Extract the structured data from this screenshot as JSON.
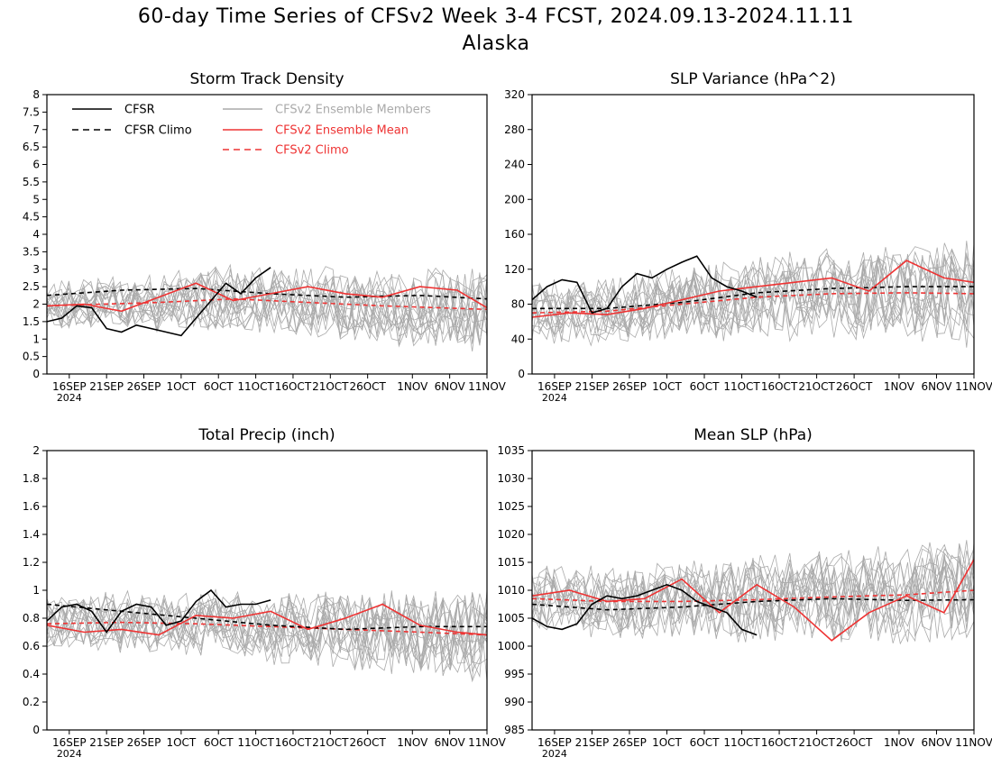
{
  "title": {
    "line1": "60-day Time Series of CFSv2 Week 3-4 FCST, 2024.09.13-2024.11.11",
    "line2": "Alaska"
  },
  "colors": {
    "cfsr": "#000000",
    "ensemble_member": "#aaaaaa",
    "ensemble_mean": "#ee3333",
    "cfsv2_climo": "#ee3333"
  },
  "legend": {
    "placement": "top-left of first panel",
    "entries": [
      {
        "label": "CFSR",
        "style": "solid",
        "color": "#000000"
      },
      {
        "label": "CFSR Climo",
        "style": "dashed",
        "color": "#000000"
      },
      {
        "label": "CFSv2 Ensemble Members",
        "style": "solid",
        "color": "#aaaaaa"
      },
      {
        "label": "CFSv2 Ensemble Mean",
        "style": "solid",
        "color": "#ee3333"
      },
      {
        "label": "CFSv2 Climo",
        "style": "dashed",
        "color": "#ee3333"
      }
    ]
  },
  "x_axis": {
    "start_date": "2024-09-13",
    "end_date": "2024-11-11",
    "ticks": [
      {
        "date": "2024-09-16",
        "label": "16SEP",
        "sublabel": "2024"
      },
      {
        "date": "2024-09-21",
        "label": "21SEP"
      },
      {
        "date": "2024-09-26",
        "label": "26SEP"
      },
      {
        "date": "2024-10-01",
        "label": "1OCT"
      },
      {
        "date": "2024-10-06",
        "label": "6OCT"
      },
      {
        "date": "2024-10-11",
        "label": "11OCT"
      },
      {
        "date": "2024-10-16",
        "label": "16OCT"
      },
      {
        "date": "2024-10-21",
        "label": "21OCT"
      },
      {
        "date": "2024-10-26",
        "label": "26OCT"
      },
      {
        "date": "2024-11-01",
        "label": "1NOV"
      },
      {
        "date": "2024-11-06",
        "label": "6NOV"
      },
      {
        "date": "2024-11-11",
        "label": "11NOV"
      }
    ]
  },
  "chart_data": [
    {
      "type": "line",
      "title": "Storm Track Density",
      "ylim": [
        0,
        8
      ],
      "yticks": [
        "0",
        "0.5",
        "1",
        "1.5",
        "2",
        "2.5",
        "3",
        "3.5",
        "4",
        "4.5",
        "5",
        "5.5",
        "6",
        "6.5",
        "7",
        "7.5",
        "8"
      ],
      "series": [
        {
          "name": "CFSR",
          "style": "solid",
          "color": "#000000",
          "x": [
            "2024-09-13",
            "2024-09-15",
            "2024-09-17",
            "2024-09-19",
            "2024-09-21",
            "2024-09-23",
            "2024-09-25",
            "2024-09-27",
            "2024-09-29",
            "2024-10-01",
            "2024-10-03",
            "2024-10-05",
            "2024-10-07",
            "2024-10-09",
            "2024-10-11",
            "2024-10-13"
          ],
          "y": [
            1.5,
            1.6,
            1.95,
            1.9,
            1.3,
            1.2,
            1.4,
            1.3,
            1.2,
            1.1,
            1.6,
            2.1,
            2.6,
            2.3,
            2.75,
            3.05
          ]
        },
        {
          "name": "CFSR Climo",
          "style": "dashed",
          "color": "#000000",
          "x": [
            "2024-09-13",
            "2024-09-23",
            "2024-10-03",
            "2024-10-13",
            "2024-10-23",
            "2024-11-02",
            "2024-11-11"
          ],
          "y": [
            2.25,
            2.4,
            2.45,
            2.3,
            2.2,
            2.25,
            2.15
          ]
        },
        {
          "name": "CFSv2 Ensemble Mean",
          "style": "solid",
          "color": "#ee3333",
          "x": [
            "2024-09-13",
            "2024-09-18",
            "2024-09-23",
            "2024-09-28",
            "2024-10-03",
            "2024-10-08",
            "2024-10-13",
            "2024-10-18",
            "2024-10-23",
            "2024-10-28",
            "2024-11-02",
            "2024-11-07",
            "2024-11-11"
          ],
          "y": [
            1.95,
            2.0,
            1.8,
            2.2,
            2.6,
            2.1,
            2.3,
            2.5,
            2.3,
            2.2,
            2.5,
            2.4,
            1.9
          ]
        },
        {
          "name": "CFSv2 Climo",
          "style": "dashed",
          "color": "#ee3333",
          "x": [
            "2024-09-13",
            "2024-09-28",
            "2024-10-08",
            "2024-10-18",
            "2024-10-28",
            "2024-11-11"
          ],
          "y": [
            1.95,
            2.05,
            2.15,
            2.05,
            1.95,
            1.85
          ]
        }
      ],
      "ensemble_members": {
        "count": 16,
        "color": "#aaaaaa",
        "center": 2.3,
        "spread": 1.1
      }
    },
    {
      "type": "line",
      "title": "SLP Variance (hPa^2)",
      "ylim": [
        0,
        320
      ],
      "yticks": [
        "0",
        "40",
        "80",
        "120",
        "160",
        "200",
        "240",
        "280",
        "320"
      ],
      "series": [
        {
          "name": "CFSR",
          "style": "solid",
          "color": "#000000",
          "x": [
            "2024-09-13",
            "2024-09-15",
            "2024-09-17",
            "2024-09-19",
            "2024-09-21",
            "2024-09-23",
            "2024-09-25",
            "2024-09-27",
            "2024-09-29",
            "2024-10-01",
            "2024-10-03",
            "2024-10-05",
            "2024-10-07",
            "2024-10-09",
            "2024-10-11",
            "2024-10-13"
          ],
          "y": [
            85,
            100,
            108,
            105,
            70,
            75,
            100,
            115,
            110,
            120,
            128,
            135,
            110,
            100,
            95,
            88
          ]
        },
        {
          "name": "CFSR Climo",
          "style": "dashed",
          "color": "#000000",
          "x": [
            "2024-09-13",
            "2024-09-23",
            "2024-10-03",
            "2024-10-13",
            "2024-10-23",
            "2024-11-02",
            "2024-11-11"
          ],
          "y": [
            75,
            75,
            82,
            93,
            98,
            100,
            100
          ]
        },
        {
          "name": "CFSv2 Ensemble Mean",
          "style": "solid",
          "color": "#ee3333",
          "x": [
            "2024-09-13",
            "2024-09-18",
            "2024-09-23",
            "2024-09-28",
            "2024-10-03",
            "2024-10-08",
            "2024-10-13",
            "2024-10-18",
            "2024-10-23",
            "2024-10-28",
            "2024-11-02",
            "2024-11-07",
            "2024-11-11"
          ],
          "y": [
            65,
            70,
            68,
            75,
            85,
            95,
            100,
            105,
            110,
            95,
            130,
            110,
            105
          ]
        },
        {
          "name": "CFSv2 Climo",
          "style": "dashed",
          "color": "#ee3333",
          "x": [
            "2024-09-13",
            "2024-09-23",
            "2024-10-03",
            "2024-10-13",
            "2024-10-23",
            "2024-11-02",
            "2024-11-11"
          ],
          "y": [
            70,
            72,
            80,
            88,
            92,
            93,
            92
          ]
        }
      ],
      "ensemble_members": {
        "count": 16,
        "color": "#aaaaaa",
        "center": 95,
        "spread": 55
      }
    },
    {
      "type": "line",
      "title": "Total Precip (inch)",
      "ylim": [
        0,
        2
      ],
      "yticks": [
        "0",
        "0.2",
        "0.4",
        "0.6",
        "0.8",
        "1",
        "1.2",
        "1.4",
        "1.6",
        "1.8",
        "2"
      ],
      "series": [
        {
          "name": "CFSR",
          "style": "solid",
          "color": "#000000",
          "x": [
            "2024-09-13",
            "2024-09-15",
            "2024-09-17",
            "2024-09-19",
            "2024-09-21",
            "2024-09-23",
            "2024-09-25",
            "2024-09-27",
            "2024-09-29",
            "2024-10-01",
            "2024-10-03",
            "2024-10-05",
            "2024-10-07",
            "2024-10-09",
            "2024-10-11",
            "2024-10-13"
          ],
          "y": [
            0.78,
            0.88,
            0.9,
            0.85,
            0.7,
            0.85,
            0.9,
            0.88,
            0.75,
            0.78,
            0.92,
            1.0,
            0.88,
            0.9,
            0.9,
            0.93
          ]
        },
        {
          "name": "CFSR Climo",
          "style": "dashed",
          "color": "#000000",
          "x": [
            "2024-09-13",
            "2024-09-23",
            "2024-10-03",
            "2024-10-13",
            "2024-10-23",
            "2024-11-02",
            "2024-11-11"
          ],
          "y": [
            0.9,
            0.85,
            0.8,
            0.75,
            0.72,
            0.74,
            0.74
          ]
        },
        {
          "name": "CFSv2 Ensemble Mean",
          "style": "solid",
          "color": "#ee3333",
          "x": [
            "2024-09-13",
            "2024-09-18",
            "2024-09-23",
            "2024-09-28",
            "2024-10-03",
            "2024-10-08",
            "2024-10-13",
            "2024-10-18",
            "2024-10-23",
            "2024-10-28",
            "2024-11-02",
            "2024-11-07",
            "2024-11-11"
          ],
          "y": [
            0.75,
            0.7,
            0.72,
            0.68,
            0.82,
            0.8,
            0.85,
            0.72,
            0.8,
            0.9,
            0.75,
            0.7,
            0.68
          ]
        },
        {
          "name": "CFSv2 Climo",
          "style": "dashed",
          "color": "#ee3333",
          "x": [
            "2024-09-13",
            "2024-09-23",
            "2024-10-03",
            "2024-10-13",
            "2024-10-23",
            "2024-11-02",
            "2024-11-11"
          ],
          "y": [
            0.76,
            0.77,
            0.76,
            0.74,
            0.72,
            0.7,
            0.68
          ]
        }
      ],
      "ensemble_members": {
        "count": 16,
        "color": "#aaaaaa",
        "center": 0.74,
        "spread": 0.3
      }
    },
    {
      "type": "line",
      "title": "Mean SLP (hPa)",
      "ylim": [
        985,
        1035
      ],
      "yticks": [
        "985",
        "990",
        "995",
        "1000",
        "1005",
        "1010",
        "1015",
        "1020",
        "1025",
        "1030",
        "1035"
      ],
      "series": [
        {
          "name": "CFSR",
          "style": "solid",
          "color": "#000000",
          "x": [
            "2024-09-13",
            "2024-09-15",
            "2024-09-17",
            "2024-09-19",
            "2024-09-21",
            "2024-09-23",
            "2024-09-25",
            "2024-09-27",
            "2024-09-29",
            "2024-10-01",
            "2024-10-03",
            "2024-10-05",
            "2024-10-07",
            "2024-10-09",
            "2024-10-11",
            "2024-10-13"
          ],
          "y": [
            1005,
            1003.5,
            1003,
            1004,
            1007.5,
            1009,
            1008.5,
            1009,
            1010,
            1011,
            1010,
            1008,
            1007,
            1006,
            1003,
            1002
          ]
        },
        {
          "name": "CFSR Climo",
          "style": "dashed",
          "color": "#000000",
          "x": [
            "2024-09-13",
            "2024-09-23",
            "2024-10-03",
            "2024-10-13",
            "2024-10-23",
            "2024-11-02",
            "2024-11-11"
          ],
          "y": [
            1007.5,
            1006.5,
            1007,
            1008,
            1008.5,
            1008.2,
            1008.3
          ]
        },
        {
          "name": "CFSv2 Ensemble Mean",
          "style": "solid",
          "color": "#ee3333",
          "x": [
            "2024-09-13",
            "2024-09-18",
            "2024-09-23",
            "2024-09-28",
            "2024-10-03",
            "2024-10-08",
            "2024-10-13",
            "2024-10-18",
            "2024-10-23",
            "2024-10-28",
            "2024-11-02",
            "2024-11-07",
            "2024-11-11"
          ],
          "y": [
            1009,
            1010,
            1008,
            1008.5,
            1012,
            1006,
            1011,
            1007,
            1001,
            1006,
            1009,
            1006,
            1015.5
          ]
        },
        {
          "name": "CFSv2 Climo",
          "style": "dashed",
          "color": "#ee3333",
          "x": [
            "2024-09-13",
            "2024-09-23",
            "2024-10-03",
            "2024-10-13",
            "2024-10-23",
            "2024-11-02",
            "2024-11-11"
          ],
          "y": [
            1008.5,
            1008,
            1008,
            1008.3,
            1008.8,
            1009.2,
            1010
          ]
        }
      ],
      "ensemble_members": {
        "count": 16,
        "color": "#aaaaaa",
        "center": 1007.5,
        "spread": 9
      }
    }
  ]
}
